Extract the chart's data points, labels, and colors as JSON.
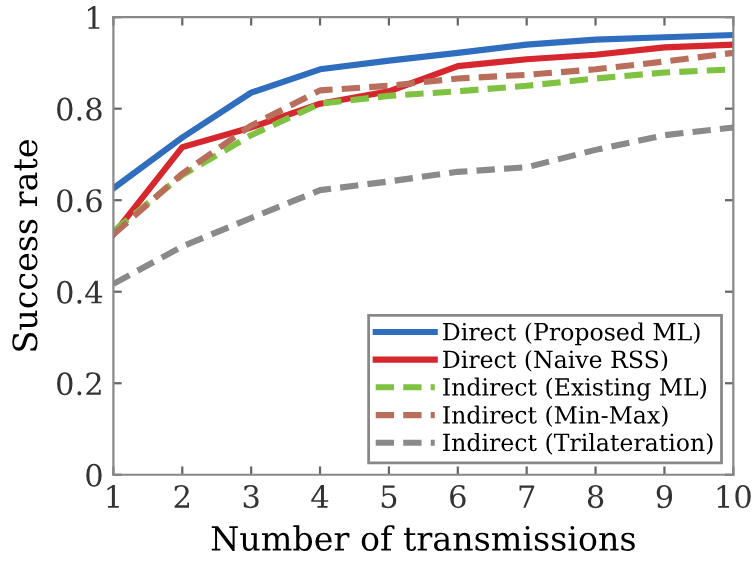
{
  "chart_data": {
    "type": "line",
    "xlabel": "Number of transmissions",
    "ylabel": "Success rate",
    "x": [
      1,
      2,
      3,
      4,
      5,
      6,
      7,
      8,
      9,
      10
    ],
    "xlim": [
      1,
      10
    ],
    "xticks": [
      1,
      2,
      3,
      4,
      5,
      6,
      7,
      8,
      9,
      10
    ],
    "ylim": [
      0,
      1
    ],
    "yticks": [
      0,
      {
        "value": 0.2,
        "label": "0.2"
      },
      {
        "value": 0.4,
        "label": "0.4"
      },
      {
        "value": 0.6,
        "label": "0.6"
      },
      {
        "value": 0.8,
        "label": "0.8"
      },
      1
    ],
    "grid": false,
    "legend": "bottom right",
    "marker": "none",
    "series": [
      {
        "name": "Direct (Proposed ML)",
        "color": "#2f6dbf",
        "line_style": "solid",
        "values": [
          0.626,
          0.737,
          0.835,
          0.886,
          0.905,
          0.922,
          0.94,
          0.951,
          0.956,
          0.961
        ]
      },
      {
        "name": "Direct (Naive RSS)",
        "color": "#d7272e",
        "line_style": "solid",
        "values": [
          0.525,
          0.716,
          0.759,
          0.811,
          0.838,
          0.893,
          0.908,
          0.918,
          0.934,
          0.94
        ]
      },
      {
        "name": "Indirect (Existing ML)",
        "color": "#7fc241",
        "line_style": "dashed",
        "values": [
          0.532,
          0.655,
          0.742,
          0.811,
          0.828,
          0.838,
          0.85,
          0.866,
          0.879,
          0.886
        ]
      },
      {
        "name": "Indirect (Min-Max)",
        "color": "#b96e5c",
        "line_style": "dashed",
        "values": [
          0.525,
          0.658,
          0.763,
          0.84,
          0.85,
          0.866,
          0.874,
          0.886,
          0.903,
          0.922
        ]
      },
      {
        "name": "Indirect (Trilateration)",
        "color": "#8a8a8a",
        "line_style": "dashed",
        "values": [
          0.417,
          0.499,
          0.561,
          0.622,
          0.641,
          0.662,
          0.672,
          0.71,
          0.742,
          0.759
        ]
      }
    ]
  }
}
